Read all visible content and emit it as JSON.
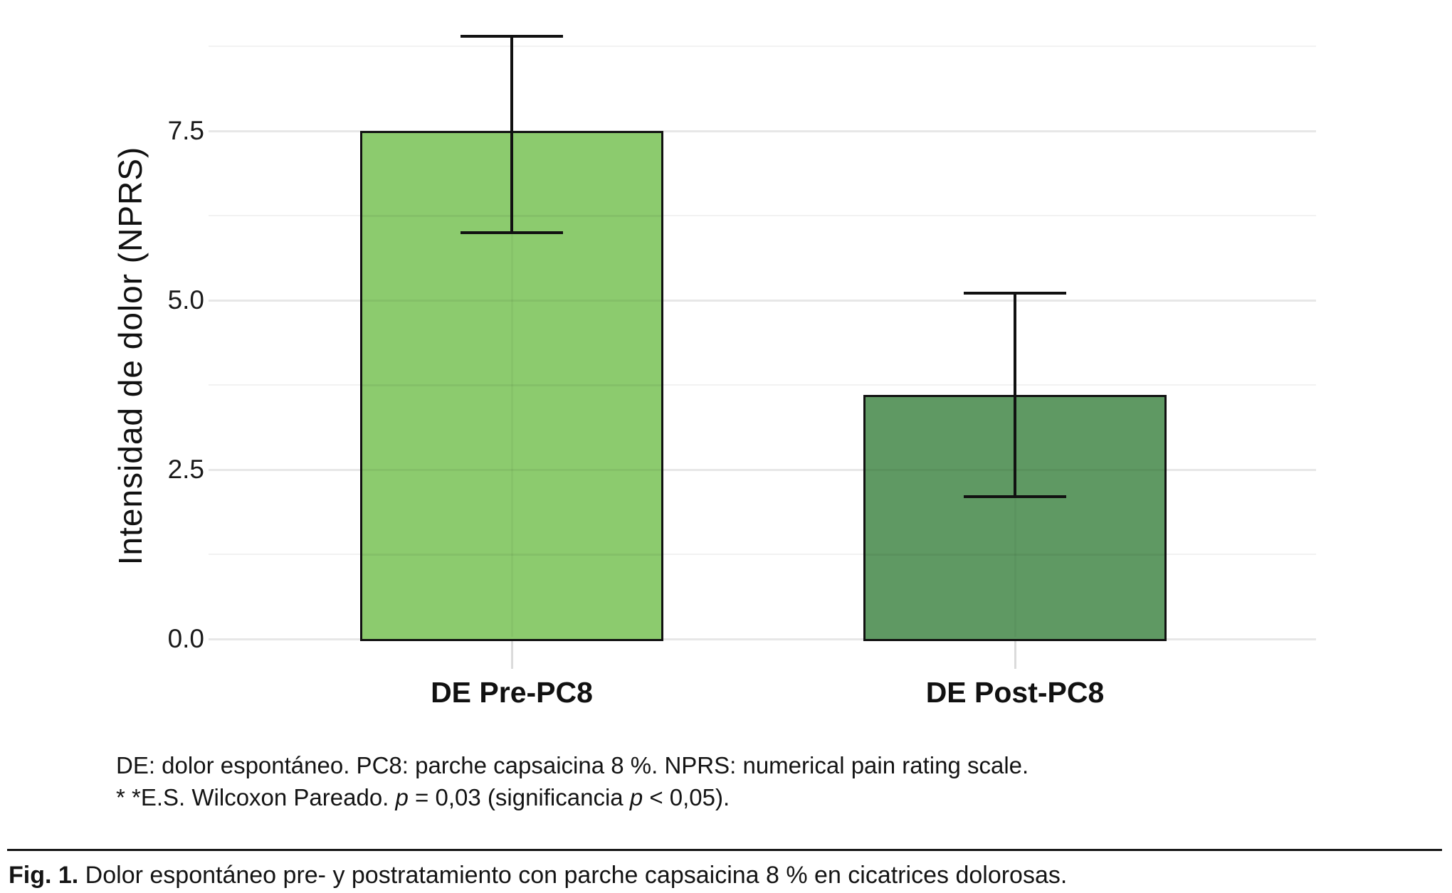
{
  "chart_data": {
    "type": "bar",
    "categories": [
      "DE Pre-PC8",
      "DE Post-PC8"
    ],
    "values": [
      7.5,
      3.6
    ],
    "error_low": [
      6.0,
      2.1
    ],
    "error_high": [
      8.9,
      5.1
    ],
    "title": "",
    "xlabel": "",
    "ylabel": "Intensidad de dolor (NPRS)",
    "ylim": [
      0,
      9.4
    ],
    "yticks_major": [
      0,
      2.5,
      5,
      7.5
    ],
    "ytick_labels": [
      "0.0",
      "2.5",
      "5.0",
      "7.5"
    ],
    "yticks_minor": [
      1.25,
      3.75,
      6.25,
      8.75
    ],
    "grid": "horizontal major and minor gridlines, no axis lines",
    "legend": "none",
    "bar_colors": [
      "#8CCB6E",
      "#5F9963"
    ],
    "bar_border_color": "#111111",
    "error_bar_color": "#111111",
    "grid_color": "#E7E7E7",
    "grid_minor_color": "#F2F2F2",
    "x_tick_color": "#DBDBDB"
  },
  "footnote": {
    "line1": "DE: dolor espontáneo. PC8: parche capsaicina 8 %. NPRS: numerical pain rating scale.",
    "line2_segments": [
      {
        "text": "* *E.S. Wilcoxon Pareado. "
      },
      {
        "text": "p",
        "italic": true
      },
      {
        "text": " = 0,03 (significancia "
      },
      {
        "text": "p",
        "italic": true
      },
      {
        "text": " < 0,05)."
      }
    ]
  },
  "caption": {
    "segments": [
      {
        "text": "Fig. 1.",
        "bold": true
      },
      {
        "text": " Dolor espontáneo pre- y postratamiento con parche capsaicina 8 % en cicatrices dolorosas."
      }
    ]
  }
}
